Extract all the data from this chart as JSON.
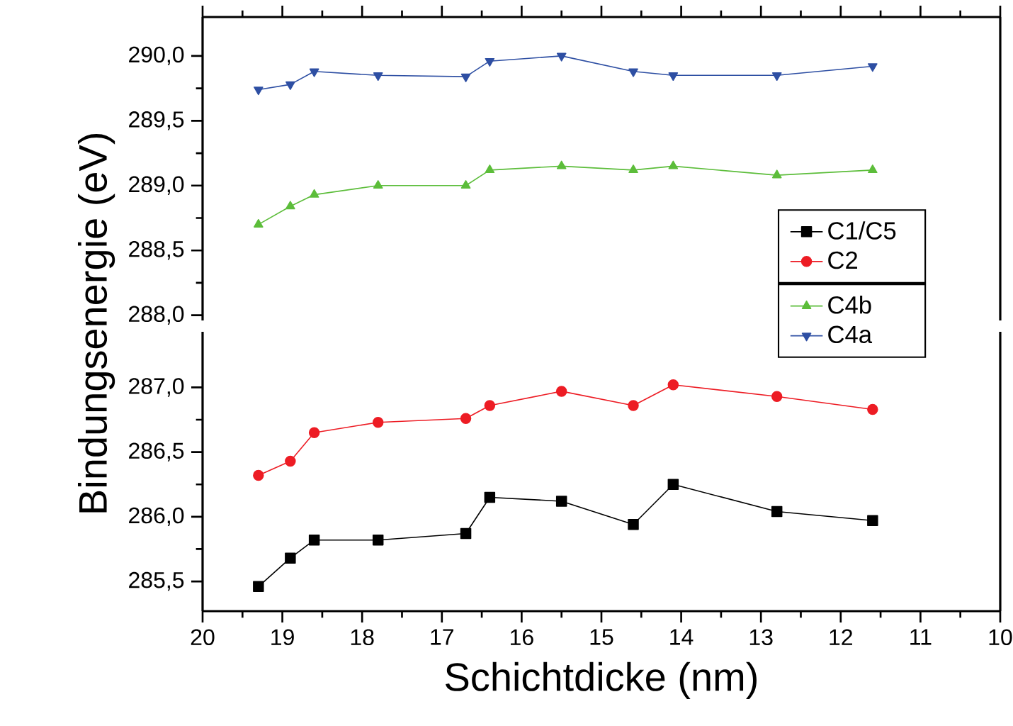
{
  "chart_data": [
    {
      "type": "line",
      "x": [
        19.3,
        18.9,
        18.6,
        17.8,
        16.7,
        16.4,
        15.5,
        14.6,
        14.1,
        12.8,
        11.6
      ],
      "xlim": [
        20,
        10
      ],
      "xticks": [
        20,
        19,
        18,
        17,
        16,
        15,
        14,
        13,
        12,
        11,
        10
      ],
      "ylim": [
        287.96,
        290.3
      ],
      "yticks": [
        {
          "value": 288.0,
          "label": "288,0"
        },
        {
          "value": 288.5,
          "label": "288,5"
        },
        {
          "value": 289.0,
          "label": "289,0"
        },
        {
          "value": 289.5,
          "label": "289,5"
        },
        {
          "value": 290.0,
          "label": "290,0"
        }
      ],
      "tick_labels": "y",
      "legend": "right",
      "line_style": "solid",
      "series": [
        {
          "name": "C4b",
          "color": "#5cbd3a",
          "marker": "triangle",
          "values": [
            288.7,
            288.84,
            288.93,
            289.0,
            289.0,
            289.12,
            289.15,
            289.12,
            289.15,
            289.08,
            289.12
          ]
        },
        {
          "name": "C4a",
          "color": "#2e4fa3",
          "marker": "triangle down",
          "values": [
            289.74,
            289.78,
            289.88,
            289.85,
            289.84,
            289.96,
            290.0,
            289.88,
            289.85,
            289.85,
            289.92
          ]
        }
      ]
    },
    {
      "type": "line",
      "xlabel": "Schichtdicke (nm)",
      "ylabel": "Bindungsenergie (eV)",
      "x": [
        19.3,
        18.9,
        18.6,
        17.8,
        16.7,
        16.4,
        15.5,
        14.6,
        14.1,
        12.8,
        11.6
      ],
      "xlim": [
        20,
        10
      ],
      "xticks": [
        20,
        19,
        18,
        17,
        16,
        15,
        14,
        13,
        12,
        11,
        10
      ],
      "ylim": [
        285.27,
        287.43
      ],
      "yticks": [
        {
          "value": 285.5,
          "label": "285,5"
        },
        {
          "value": 286.0,
          "label": "286,0"
        },
        {
          "value": 286.5,
          "label": "286,5"
        },
        {
          "value": 287.0,
          "label": "287,0"
        }
      ],
      "legend": "top right",
      "line_style": "solid",
      "series": [
        {
          "name": "C1/C5",
          "color": "#000000",
          "marker": "square",
          "values": [
            285.46,
            285.68,
            285.82,
            285.82,
            285.87,
            286.15,
            286.12,
            285.94,
            286.25,
            286.04,
            285.97
          ]
        },
        {
          "name": "C2",
          "color": "#ed1c24",
          "marker": "circle",
          "values": [
            286.32,
            286.43,
            286.65,
            286.73,
            286.76,
            286.86,
            286.97,
            286.86,
            287.02,
            286.93,
            286.83
          ]
        }
      ]
    }
  ]
}
